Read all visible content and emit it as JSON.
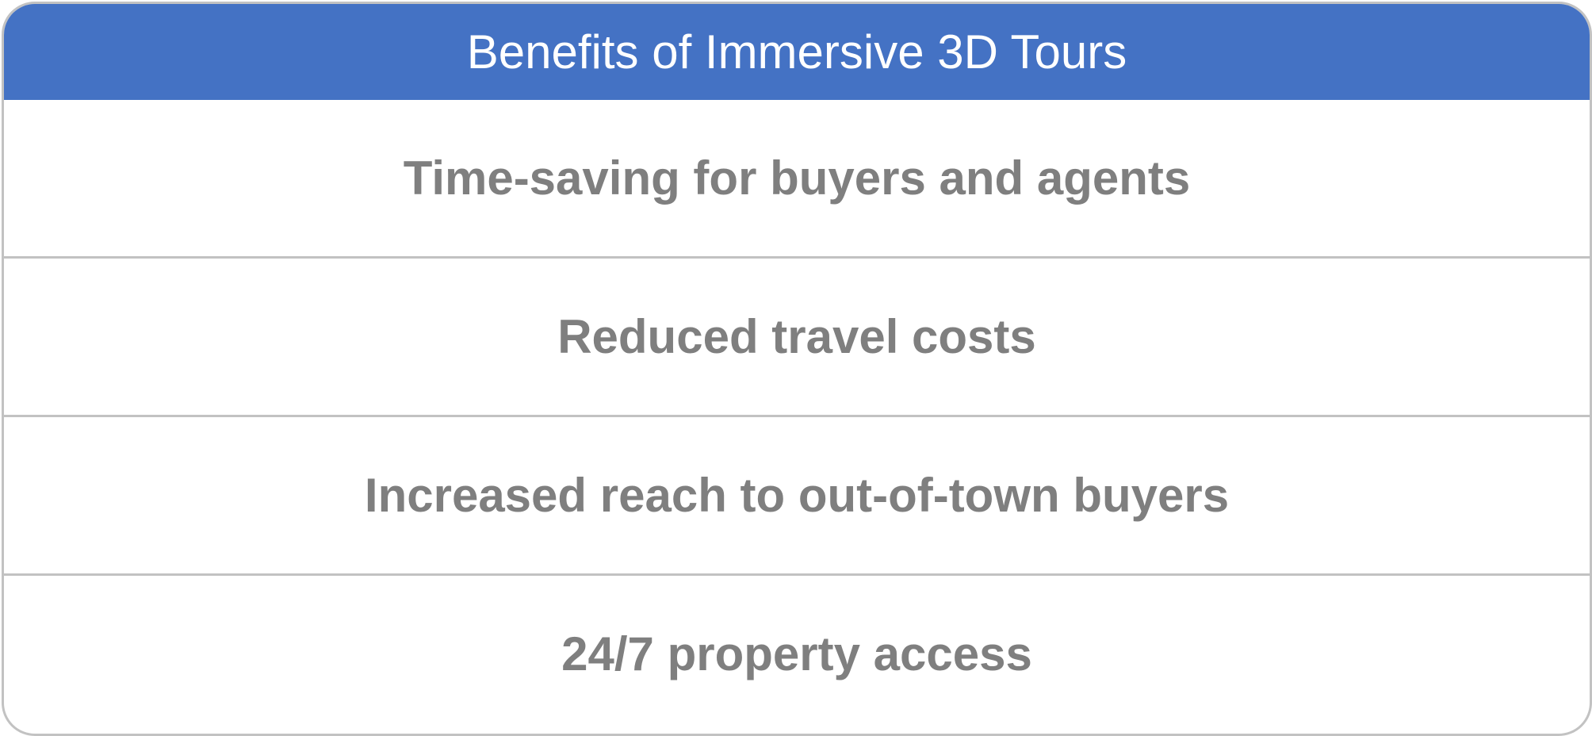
{
  "table": {
    "title": "Benefits of Immersive 3D Tours",
    "rows": [
      {
        "label": "Time-saving for buyers and agents"
      },
      {
        "label": "Reduced travel costs"
      },
      {
        "label": "Increased reach to out-of-town buyers"
      },
      {
        "label": "24/7 property access"
      }
    ]
  },
  "colors": {
    "header_background": "#4472c4",
    "header_text": "#ffffff",
    "row_text": "#7f7f7f",
    "border": "#c2c2c2"
  }
}
